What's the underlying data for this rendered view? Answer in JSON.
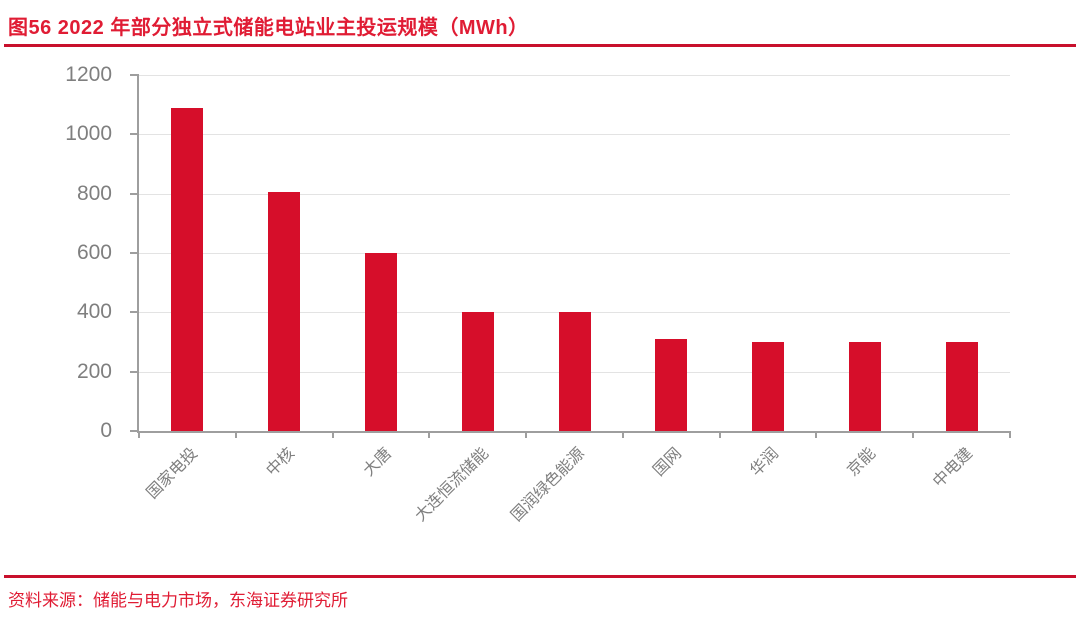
{
  "figure": {
    "label": "图56",
    "title": "图56  2022 年部分独立式储能电站业主投运规模（MWh）",
    "source": "资料来源：储能与电力市场，东海证券研究所"
  },
  "colors": {
    "bar": "#D60E2A",
    "title_text": "#E01C34",
    "divider_line": "#C8102C",
    "axis": "#9E9E9E",
    "gridline": "#E3E3E3",
    "tick_label": "#7F7F7F",
    "background": "#FFFFFF"
  },
  "chart_data": {
    "type": "bar",
    "title": "2022 年部分独立式储能电站业主投运规模（MWh）",
    "categories": [
      "国家电投",
      "中核",
      "大唐",
      "大连恒流储能",
      "国润绿色能源",
      "国网",
      "华润",
      "京能",
      "中电建"
    ],
    "values": [
      1090,
      805,
      600,
      400,
      400,
      310,
      300,
      300,
      300
    ],
    "xlabel": "",
    "ylabel": "",
    "unit": "MWh",
    "ylim": [
      0,
      1200
    ],
    "yticks": [
      0,
      200,
      400,
      600,
      800,
      1000,
      1200
    ],
    "grid": true,
    "legend": false,
    "xlabel_rotation_deg": 45
  }
}
